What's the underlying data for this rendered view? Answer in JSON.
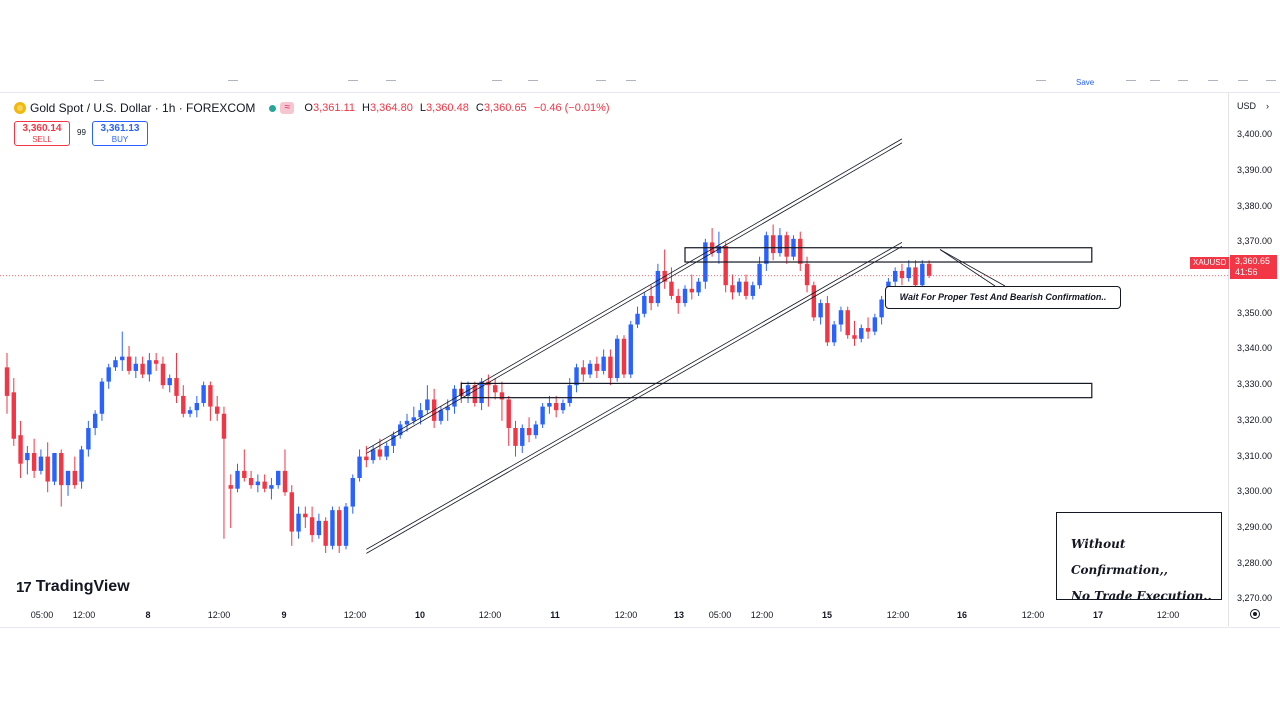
{
  "header": {
    "symbol_title": "Gold Spot / U.S. Dollar · 1h · FOREXCOM",
    "ohlc": [
      {
        "label": "O",
        "value": "3,361.11"
      },
      {
        "label": "H",
        "value": "3,364.80"
      },
      {
        "label": "L",
        "value": "3,360.48"
      },
      {
        "label": "C",
        "value": "3,360.65"
      },
      {
        "label": "",
        "value": "−0.46 (−0.01%)"
      }
    ],
    "flag_glyph": "≈"
  },
  "trade": {
    "sell_price": "3,360.14",
    "sell_label": "SELL",
    "spread": "99",
    "buy_price": "3,361.13",
    "buy_label": "BUY"
  },
  "toolbar": {
    "save_label": "Save"
  },
  "price_axis": {
    "currency": "USD",
    "ticks": [
      "3,400.00",
      "3,390.00",
      "3,380.00",
      "3,370.00",
      "3,360.00",
      "3,350.00",
      "3,340.00",
      "3,330.00",
      "3,320.00",
      "3,310.00",
      "3,300.00",
      "3,290.00",
      "3,280.00",
      "3,270.00"
    ],
    "current_price": "3,360.65",
    "countdown": "41:56",
    "symbol_tag": "XAUUSD"
  },
  "time_axis": {
    "labels": [
      {
        "text": "05:00",
        "major": false
      },
      {
        "text": "12:00",
        "major": false
      },
      {
        "text": "8",
        "major": true
      },
      {
        "text": "12:00",
        "major": false
      },
      {
        "text": "9",
        "major": true
      },
      {
        "text": "12:00",
        "major": false
      },
      {
        "text": "10",
        "major": true
      },
      {
        "text": "12:00",
        "major": false
      },
      {
        "text": "11",
        "major": true
      },
      {
        "text": "12:00",
        "major": false
      },
      {
        "text": "13",
        "major": true
      },
      {
        "text": "05:00",
        "major": false
      },
      {
        "text": "12:00",
        "major": false
      },
      {
        "text": "15",
        "major": true
      },
      {
        "text": "12:00",
        "major": false
      },
      {
        "text": "16",
        "major": true
      },
      {
        "text": "12:00",
        "major": false
      },
      {
        "text": "17",
        "major": true
      },
      {
        "text": "12:00",
        "major": false
      }
    ]
  },
  "branding": {
    "logo_text": "TradingView",
    "logo_mark": "17"
  },
  "annotations": {
    "note1": "Wait For Proper Test And Bearish Confirmation..",
    "note2_line1": "Without Confirmation,,",
    "note2_line2": "No Trade Execution.."
  },
  "colors": {
    "up": "#2962ff",
    "down": "#f23645",
    "line": "#131722"
  },
  "chart_data": {
    "type": "candlestick",
    "title": "Gold Spot / U.S. Dollar · 1h · FOREXCOM",
    "ylim": [
      3265,
      3404
    ],
    "current_price": 3360.65,
    "x_labels": [
      "05:00",
      "12:00",
      "8",
      "12:00",
      "9",
      "12:00",
      "10",
      "12:00",
      "11",
      "12:00",
      "13",
      "05:00",
      "12:00",
      "15",
      "12:00",
      "16",
      "12:00",
      "17",
      "12:00"
    ],
    "candles": [
      {
        "o": 3335,
        "h": 3339,
        "c": 3327,
        "l": 3322
      },
      {
        "o": 3328,
        "h": 3332,
        "c": 3315,
        "l": 3313
      },
      {
        "o": 3316,
        "h": 3320,
        "c": 3308,
        "l": 3304
      },
      {
        "o": 3309,
        "h": 3313,
        "c": 3311,
        "l": 3305
      },
      {
        "o": 3311,
        "h": 3315,
        "c": 3306,
        "l": 3304
      },
      {
        "o": 3306,
        "h": 3312,
        "c": 3310,
        "l": 3305
      },
      {
        "o": 3310,
        "h": 3314,
        "c": 3303,
        "l": 3300
      },
      {
        "o": 3303,
        "h": 3311,
        "c": 3311,
        "l": 3302
      },
      {
        "o": 3311,
        "h": 3312,
        "c": 3302,
        "l": 3296
      },
      {
        "o": 3302,
        "h": 3306,
        "c": 3306,
        "l": 3299
      },
      {
        "o": 3306,
        "h": 3310,
        "c": 3302,
        "l": 3301
      },
      {
        "o": 3303,
        "h": 3313,
        "c": 3312,
        "l": 3301
      },
      {
        "o": 3312,
        "h": 3320,
        "c": 3318,
        "l": 3310
      },
      {
        "o": 3318,
        "h": 3323,
        "c": 3322,
        "l": 3316
      },
      {
        "o": 3322,
        "h": 3332,
        "c": 3331,
        "l": 3320
      },
      {
        "o": 3331,
        "h": 3336,
        "c": 3335,
        "l": 3329
      },
      {
        "o": 3335,
        "h": 3338,
        "c": 3337,
        "l": 3334
      },
      {
        "o": 3337,
        "h": 3345,
        "c": 3338,
        "l": 3334
      },
      {
        "o": 3338,
        "h": 3341,
        "c": 3334,
        "l": 3333
      },
      {
        "o": 3334,
        "h": 3338,
        "c": 3336,
        "l": 3332
      },
      {
        "o": 3336,
        "h": 3338,
        "c": 3333,
        "l": 3332
      },
      {
        "o": 3333,
        "h": 3339,
        "c": 3337,
        "l": 3331
      },
      {
        "o": 3337,
        "h": 3339,
        "c": 3336,
        "l": 3334
      },
      {
        "o": 3336,
        "h": 3338,
        "c": 3330,
        "l": 3329
      },
      {
        "o": 3330,
        "h": 3333,
        "c": 3332,
        "l": 3328
      },
      {
        "o": 3332,
        "h": 3339,
        "c": 3327,
        "l": 3325
      },
      {
        "o": 3327,
        "h": 3330,
        "c": 3322,
        "l": 3321
      },
      {
        "o": 3322,
        "h": 3324,
        "c": 3323,
        "l": 3321
      },
      {
        "o": 3323,
        "h": 3327,
        "c": 3325,
        "l": 3321
      },
      {
        "o": 3325,
        "h": 3331,
        "c": 3330,
        "l": 3324
      },
      {
        "o": 3330,
        "h": 3331,
        "c": 3324,
        "l": 3320
      },
      {
        "o": 3324,
        "h": 3327,
        "c": 3322,
        "l": 3320
      },
      {
        "o": 3322,
        "h": 3324,
        "c": 3315,
        "l": 3287
      },
      {
        "o": 3302,
        "h": 3305,
        "c": 3301,
        "l": 3290
      },
      {
        "o": 3301,
        "h": 3308,
        "c": 3306,
        "l": 3300
      },
      {
        "o": 3306,
        "h": 3312,
        "c": 3304,
        "l": 3303
      },
      {
        "o": 3304,
        "h": 3306,
        "c": 3302,
        "l": 3301
      },
      {
        "o": 3302,
        "h": 3305,
        "c": 3303,
        "l": 3300
      },
      {
        "o": 3303,
        "h": 3305,
        "c": 3301,
        "l": 3300
      },
      {
        "o": 3301,
        "h": 3304,
        "c": 3302,
        "l": 3298
      },
      {
        "o": 3302,
        "h": 3306,
        "c": 3306,
        "l": 3301
      },
      {
        "o": 3306,
        "h": 3312,
        "c": 3300,
        "l": 3299
      },
      {
        "o": 3300,
        "h": 3302,
        "c": 3289,
        "l": 3285
      },
      {
        "o": 3289,
        "h": 3296,
        "c": 3294,
        "l": 3287
      },
      {
        "o": 3294,
        "h": 3296,
        "c": 3293,
        "l": 3290
      },
      {
        "o": 3293,
        "h": 3296,
        "c": 3288,
        "l": 3286
      },
      {
        "o": 3288,
        "h": 3294,
        "c": 3292,
        "l": 3287
      },
      {
        "o": 3292,
        "h": 3293,
        "c": 3285,
        "l": 3283
      },
      {
        "o": 3285,
        "h": 3296,
        "c": 3295,
        "l": 3284
      },
      {
        "o": 3295,
        "h": 3296,
        "c": 3285,
        "l": 3283
      },
      {
        "o": 3285,
        "h": 3297,
        "c": 3296,
        "l": 3284
      },
      {
        "o": 3296,
        "h": 3305,
        "c": 3304,
        "l": 3294
      },
      {
        "o": 3304,
        "h": 3312,
        "c": 3310,
        "l": 3303
      },
      {
        "o": 3310,
        "h": 3313,
        "c": 3309,
        "l": 3307
      },
      {
        "o": 3309,
        "h": 3313,
        "c": 3312,
        "l": 3308
      },
      {
        "o": 3312,
        "h": 3315,
        "c": 3310,
        "l": 3309
      },
      {
        "o": 3310,
        "h": 3314,
        "c": 3313,
        "l": 3309
      },
      {
        "o": 3313,
        "h": 3317,
        "c": 3316,
        "l": 3311
      },
      {
        "o": 3316,
        "h": 3320,
        "c": 3319,
        "l": 3315
      },
      {
        "o": 3319,
        "h": 3322,
        "c": 3320,
        "l": 3317
      },
      {
        "o": 3320,
        "h": 3324,
        "c": 3321,
        "l": 3319
      },
      {
        "o": 3321,
        "h": 3325,
        "c": 3323,
        "l": 3319
      },
      {
        "o": 3323,
        "h": 3330,
        "c": 3326,
        "l": 3322
      },
      {
        "o": 3326,
        "h": 3329,
        "c": 3320,
        "l": 3318
      },
      {
        "o": 3320,
        "h": 3324,
        "c": 3323,
        "l": 3319
      },
      {
        "o": 3323,
        "h": 3326,
        "c": 3324,
        "l": 3320
      },
      {
        "o": 3324,
        "h": 3330,
        "c": 3329,
        "l": 3322
      },
      {
        "o": 3329,
        "h": 3331,
        "c": 3327,
        "l": 3325
      },
      {
        "o": 3327,
        "h": 3331,
        "c": 3330,
        "l": 3325
      },
      {
        "o": 3330,
        "h": 3331,
        "c": 3325,
        "l": 3324
      },
      {
        "o": 3325,
        "h": 3332,
        "c": 3331,
        "l": 3323
      },
      {
        "o": 3331,
        "h": 3333,
        "c": 3330,
        "l": 3324
      },
      {
        "o": 3330,
        "h": 3332,
        "c": 3328,
        "l": 3326
      },
      {
        "o": 3328,
        "h": 3331,
        "c": 3326,
        "l": 3320
      },
      {
        "o": 3326,
        "h": 3327,
        "c": 3318,
        "l": 3313
      },
      {
        "o": 3318,
        "h": 3320,
        "c": 3313,
        "l": 3310
      },
      {
        "o": 3313,
        "h": 3319,
        "c": 3318,
        "l": 3311
      },
      {
        "o": 3318,
        "h": 3321,
        "c": 3316,
        "l": 3314
      },
      {
        "o": 3316,
        "h": 3320,
        "c": 3319,
        "l": 3315
      },
      {
        "o": 3319,
        "h": 3325,
        "c": 3324,
        "l": 3318
      },
      {
        "o": 3324,
        "h": 3327,
        "c": 3325,
        "l": 3322
      },
      {
        "o": 3325,
        "h": 3327,
        "c": 3323,
        "l": 3321
      },
      {
        "o": 3323,
        "h": 3326,
        "c": 3325,
        "l": 3322
      },
      {
        "o": 3325,
        "h": 3332,
        "c": 3330,
        "l": 3324
      },
      {
        "o": 3330,
        "h": 3336,
        "c": 3335,
        "l": 3328
      },
      {
        "o": 3335,
        "h": 3337,
        "c": 3333,
        "l": 3331
      },
      {
        "o": 3333,
        "h": 3337,
        "c": 3336,
        "l": 3332
      },
      {
        "o": 3336,
        "h": 3338,
        "c": 3334,
        "l": 3332
      },
      {
        "o": 3334,
        "h": 3340,
        "c": 3338,
        "l": 3333
      },
      {
        "o": 3338,
        "h": 3340,
        "c": 3332,
        "l": 3330
      },
      {
        "o": 3332,
        "h": 3344,
        "c": 3343,
        "l": 3331
      },
      {
        "o": 3343,
        "h": 3344,
        "c": 3333,
        "l": 3332
      },
      {
        "o": 3333,
        "h": 3348,
        "c": 3347,
        "l": 3332
      },
      {
        "o": 3347,
        "h": 3352,
        "c": 3350,
        "l": 3346
      },
      {
        "o": 3350,
        "h": 3356,
        "c": 3355,
        "l": 3349
      },
      {
        "o": 3355,
        "h": 3358,
        "c": 3353,
        "l": 3351
      },
      {
        "o": 3353,
        "h": 3364,
        "c": 3362,
        "l": 3352
      },
      {
        "o": 3362,
        "h": 3368,
        "c": 3359,
        "l": 3357
      },
      {
        "o": 3359,
        "h": 3363,
        "c": 3355,
        "l": 3354
      },
      {
        "o": 3355,
        "h": 3357,
        "c": 3353,
        "l": 3350
      },
      {
        "o": 3353,
        "h": 3358,
        "c": 3357,
        "l": 3352
      },
      {
        "o": 3357,
        "h": 3361,
        "c": 3356,
        "l": 3354
      },
      {
        "o": 3356,
        "h": 3360,
        "c": 3359,
        "l": 3355
      },
      {
        "o": 3359,
        "h": 3371,
        "c": 3370,
        "l": 3357
      },
      {
        "o": 3370,
        "h": 3374,
        "c": 3367,
        "l": 3366
      },
      {
        "o": 3367,
        "h": 3373,
        "c": 3369,
        "l": 3364
      },
      {
        "o": 3369,
        "h": 3370,
        "c": 3358,
        "l": 3356
      },
      {
        "o": 3358,
        "h": 3361,
        "c": 3356,
        "l": 3354
      },
      {
        "o": 3356,
        "h": 3360,
        "c": 3359,
        "l": 3355
      },
      {
        "o": 3359,
        "h": 3361,
        "c": 3355,
        "l": 3354
      },
      {
        "o": 3355,
        "h": 3359,
        "c": 3358,
        "l": 3354
      },
      {
        "o": 3358,
        "h": 3366,
        "c": 3364,
        "l": 3357
      },
      {
        "o": 3364,
        "h": 3373,
        "c": 3372,
        "l": 3362
      },
      {
        "o": 3372,
        "h": 3375,
        "c": 3367,
        "l": 3365
      },
      {
        "o": 3367,
        "h": 3374,
        "c": 3372,
        "l": 3366
      },
      {
        "o": 3372,
        "h": 3373,
        "c": 3366,
        "l": 3364
      },
      {
        "o": 3366,
        "h": 3372,
        "c": 3371,
        "l": 3365
      },
      {
        "o": 3371,
        "h": 3373,
        "c": 3364,
        "l": 3362
      },
      {
        "o": 3364,
        "h": 3366,
        "c": 3358,
        "l": 3356
      },
      {
        "o": 3358,
        "h": 3359,
        "c": 3349,
        "l": 3348
      },
      {
        "o": 3349,
        "h": 3354,
        "c": 3353,
        "l": 3347
      },
      {
        "o": 3353,
        "h": 3355,
        "c": 3342,
        "l": 3341
      },
      {
        "o": 3342,
        "h": 3348,
        "c": 3347,
        "l": 3341
      },
      {
        "o": 3347,
        "h": 3352,
        "c": 3351,
        "l": 3345
      },
      {
        "o": 3351,
        "h": 3352,
        "c": 3344,
        "l": 3343
      },
      {
        "o": 3344,
        "h": 3348,
        "c": 3343,
        "l": 3341
      },
      {
        "o": 3343,
        "h": 3347,
        "c": 3346,
        "l": 3342
      },
      {
        "o": 3346,
        "h": 3349,
        "c": 3345,
        "l": 3343
      },
      {
        "o": 3345,
        "h": 3350,
        "c": 3349,
        "l": 3344
      },
      {
        "o": 3349,
        "h": 3355,
        "c": 3354,
        "l": 3347
      },
      {
        "o": 3354,
        "h": 3360,
        "c": 3359,
        "l": 3352
      },
      {
        "o": 3359,
        "h": 3363,
        "c": 3362,
        "l": 3357
      },
      {
        "o": 3362,
        "h": 3364,
        "c": 3360,
        "l": 3358
      },
      {
        "o": 3360,
        "h": 3365,
        "c": 3363,
        "l": 3359
      },
      {
        "o": 3363,
        "h": 3365,
        "c": 3358,
        "l": 3357
      },
      {
        "o": 3358,
        "h": 3365,
        "c": 3364,
        "l": 3357
      },
      {
        "o": 3364,
        "h": 3365,
        "c": 3360.65,
        "l": 3360
      }
    ],
    "drawings": {
      "channel_upper": {
        "from": {
          "bar": 53,
          "price": 3312
        },
        "to": {
          "bar": 132,
          "price": 3399
        }
      },
      "channel_lower": {
        "from": {
          "bar": 53,
          "price": 3284
        },
        "to": {
          "bar": 132,
          "price": 3370
        }
      },
      "resistance_zone": {
        "from_bar": 100,
        "to_bar": 160,
        "top": 3368.5,
        "bottom": 3364.5
      },
      "support_zone": {
        "from_bar": 67,
        "to_bar": 160,
        "top": 3330.5,
        "bottom": 3326.5
      }
    }
  }
}
